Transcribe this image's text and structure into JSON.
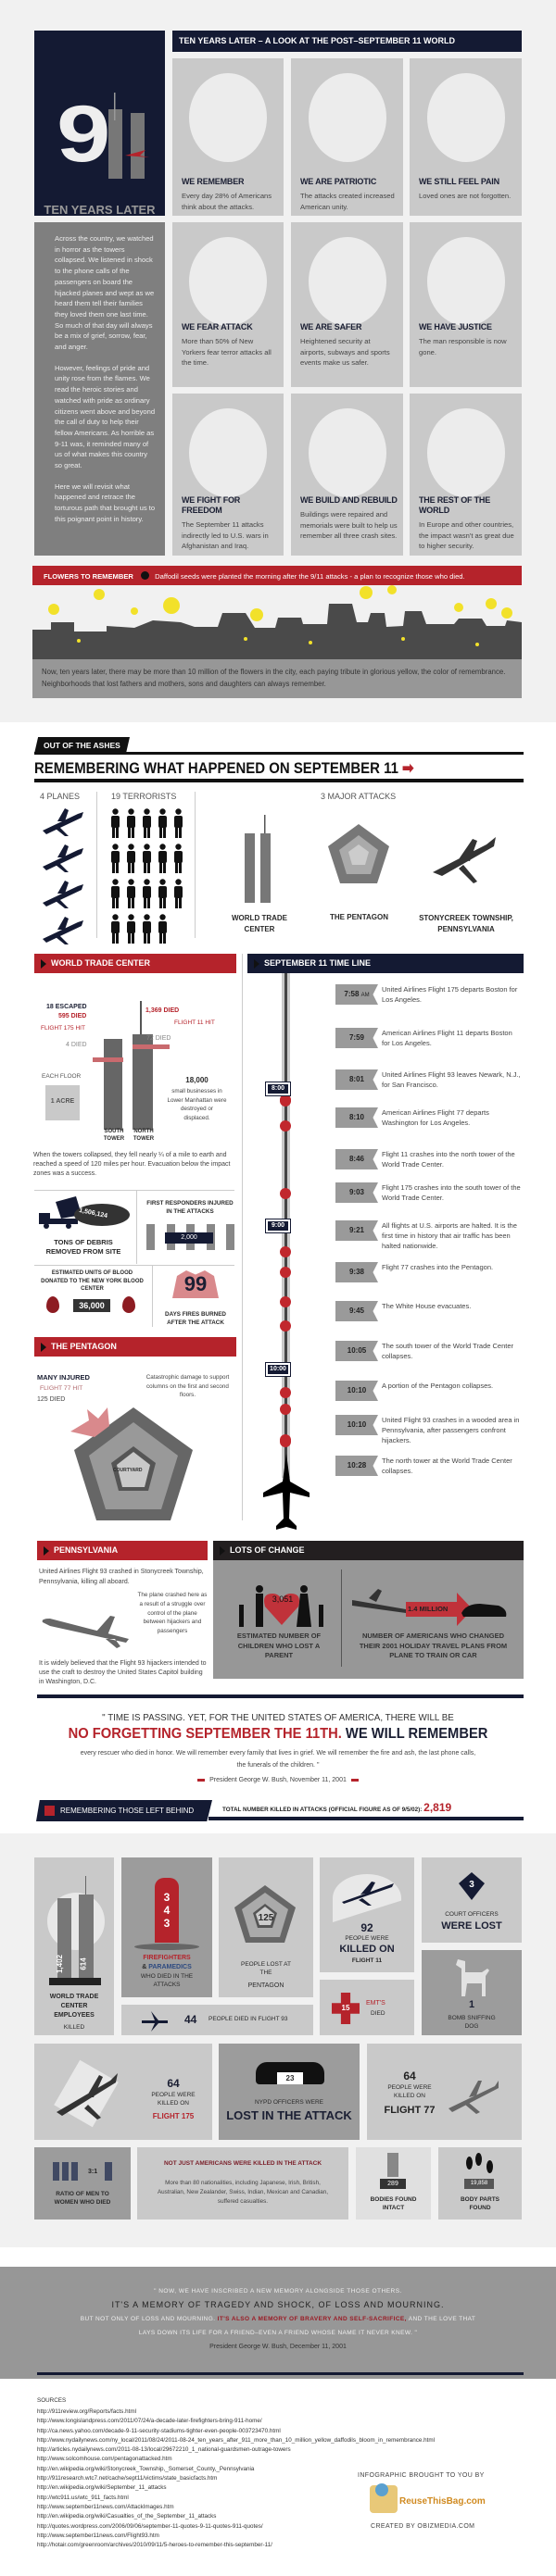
{
  "intro": {
    "logo_number": "9 11",
    "subtitle": "TEN YEARS LATER",
    "header": "TEN YEARS LATER – A LOOK AT THE POST–SEPTEMBER 11 WORLD",
    "story": [
      "Across the country, we watched in horror as the towers collapsed. We listened in shock to the phone calls of the passengers on board the hijacked planes and wept as we heard them tell their families they loved them one last time. So much of that day will always be a mix of grief, sorrow, fear, and anger.",
      "However, feelings of pride and unity rose from the flames. We read the heroic stories and watched with pride as ordinary citizens went above and beyond the call of duty to help their fellow Americans. As horrible as 9-11 was, it reminded many of us of what makes this country so great.",
      "Here we will revisit what happened and retrace the torturous path that brought us to this poignant point in history."
    ],
    "cards": [
      {
        "title": "WE REMEMBER",
        "text": "Every day 28% of Americans think about the attacks.",
        "icon": "thinking-person-icon"
      },
      {
        "title": "WE ARE PATRIOTIC",
        "text": "The attacks created increased American unity.",
        "icon": "flag-icon"
      },
      {
        "title": "WE STILL FEEL PAIN",
        "text": "Loved ones are not forgotten.",
        "icon": "heart-graves-icon"
      },
      {
        "title": "WE FEAR ATTACK",
        "text": "More than 50% of New Yorkers fear terror attacks all the time.",
        "icon": "plane-city-icon"
      },
      {
        "title": "WE ARE SAFER",
        "text": "Heightened security at airports, subways and sports events make us safer.",
        "icon": "security-gate-icon"
      },
      {
        "title": "WE HAVE JUSTICE",
        "text": "The man responsible is now gone.",
        "icon": "justice-portrait-icon",
        "stamp": "JUSTICE"
      },
      {
        "title": "WE FIGHT FOR FREEDOM",
        "text": "The September 11 attacks indirectly led to U.S. wars in Afghanistan and Iraq.",
        "icon": "tank-jet-icon"
      },
      {
        "title": "WE BUILD AND REBUILD",
        "text": "Buildings were repaired and memorials were built to help us remember all three crash sites.",
        "icon": "tools-icon"
      },
      {
        "title": "THE REST OF THE WORLD",
        "text": "In Europe and other countries, the impact wasn't as great due to higher security.",
        "icon": "globe-icon"
      }
    ]
  },
  "flowers": {
    "label": "FLOWERS TO REMEMBER",
    "caption": "Daffodil seeds were planted the morning after the 9/11 attacks - a plan to recognize those who died.",
    "text": "Now, ten years later, there may be more than 10 million of the flowers in the city, each paying tribute in glorious yellow, the color of remembrance. Neighborhoods that lost fathers and mothers, sons and daughters can always remember."
  },
  "ashes": {
    "tag": "OUT OF THE ASHES",
    "title": "REMEMBERING WHAT HAPPENED ON SEPTEMBER 11",
    "planes_label": "4 PLANES",
    "planes_count": 4,
    "terrorists_label": "19 TERRORISTS",
    "terrorists_count": 19,
    "attacks_label": "3 MAJOR ATTACKS",
    "attacks": [
      "WORLD TRADE CENTER",
      "THE PENTAGON",
      "STONYCREEK TOWNSHIP, PENNSYLVANIA"
    ]
  },
  "wtc": {
    "header": "WORLD TRADE CENTER",
    "south": {
      "escaped": "18 ESCAPED",
      "died_above": "595 DIED",
      "hit": "FLIGHT 175 HIT",
      "died_below": "4 DIED",
      "label": "SOUTH TOWER"
    },
    "north": {
      "died_above": "1,369 DIED",
      "hit": "FLIGHT 11 HIT",
      "died_below": "72 DIED",
      "label": "NORTH TOWER"
    },
    "floor_label": "EACH FLOOR",
    "floor_value": "1 ACRE",
    "businesses_value": "18,000",
    "businesses_text": "small businesses in Lower Manhattan were destroyed or displaced.",
    "collapse_text": "When the towers collapsed, they fell nearly ¼ of a mile to earth and reached a speed of 120 miles per hour. Evacuation below the impact zones was a success.",
    "debris_value": "1,506,124",
    "debris_label": "TONS OF DEBRIS REMOVED FROM SITE",
    "responders_label": "FIRST RESPONDERS INJURED IN THE ATTACKS",
    "responders_value": "2,000",
    "blood_label": "ESTIMATED UNITS OF BLOOD DONATED TO THE NEW YORK BLOOD CENTER",
    "blood_value": "36,000",
    "fires_value": "99",
    "fires_label": "DAYS FIRES BURNED AFTER THE ATTACK"
  },
  "pentagon": {
    "header": "THE PENTAGON",
    "injured": "MANY INJURED",
    "hit": "FLIGHT 77 HIT",
    "died": "125 DIED",
    "damage": "Catastrophic damage to support columns on the first and second floors.",
    "courtyard": "COURTYARD"
  },
  "timeline": {
    "header": "SEPTEMBER 11  TIME LINE",
    "hours": [
      "8:00",
      "9:00",
      "10:00"
    ],
    "events": [
      {
        "time": "7:58",
        "suffix": "AM",
        "text": "United Airlines Flight 175 departs Boston for Los Angeles."
      },
      {
        "time": "7:59",
        "text": "American Airlines Flight 11 departs Boston for Los Angeles."
      },
      {
        "time": "8:01",
        "text": "United Airlines Flight 93 leaves Newark, N.J., for San Francisco."
      },
      {
        "time": "8:10",
        "text": "American Airlines Flight 77 departs Washington for Los Angeles."
      },
      {
        "time": "8:46",
        "text": "Flight 11 crashes into the north tower of the World Trade Center."
      },
      {
        "time": "9:03",
        "text": "Flight 175 crashes into the south tower of the World Trade Center."
      },
      {
        "time": "9:21",
        "text": "All flights at U.S. airports are halted.  It is the first time in history that air traffic has been halted nationwide."
      },
      {
        "time": "9:38",
        "text": "Flight 77 crashes into the Pentagon."
      },
      {
        "time": "9:45",
        "text": "The White House evacuates."
      },
      {
        "time": "10:05",
        "text": "The south tower of the World Trade Center collapses."
      },
      {
        "time": "10:10",
        "text": "A portion of the Pentagon collapses."
      },
      {
        "time": "10:10",
        "text": "United Flight 93 crashes in a wooded area in Pennsylvania, after passengers confront hijackers."
      },
      {
        "time": "10:28",
        "text": "The north tower at the World Trade Center collapses."
      }
    ]
  },
  "pennsylvania": {
    "header": "PENNSYLVANIA",
    "text1": "United Airlines Flight 93 crashed in Stonycreek Township, Pennsylvania, killing all aboard.",
    "text2": "The plane crashed here as a result of a struggle over control of the plane between hijackers and passengers",
    "text3": "It is widely believed that the Flight 93 hijackers intended to use the craft to destroy the United States Capitol building in Washington, D.C."
  },
  "change": {
    "header": "LOTS OF CHANGE",
    "children_value": "3,051",
    "children_label": "ESTIMATED NUMBER OF CHILDREN WHO LOST A PARENT",
    "travel_value": "1.4 MILLION",
    "travel_label": "NUMBER OF AMERICANS WHO CHANGED THEIR 2001 HOLIDAY TRAVEL PLANS FROM PLANE TO TRAIN OR CAR"
  },
  "quote1": {
    "line1": "\" TIME IS PASSING. YET, FOR THE UNITED STATES OF AMERICA, THERE WILL BE",
    "red": "NO FORGETTING SEPTEMBER THE 11TH.",
    "navy": " WE WILL REMEMBER",
    "line3": "every rescuer who died in honor. We will remember every family that lives in grief. We will remember the fire and ash, the last phone calls, the funerals of the children. \"",
    "attribution": "President George W. Bush, November 11, 2001"
  },
  "left_behind": {
    "header": "REMEMBERING THOSE LEFT BEHIND",
    "total_label": "TOTAL NUMBER KILLED IN ATTACKS (OFFICIAL FIGURE AS OF 9/5/02):",
    "total_value": "2,819",
    "wtc_south": "1,402",
    "wtc_north": "614",
    "wtc_label": "WORLD TRADE CENTER EMPLOYEES",
    "wtc_label2": "KILLED",
    "fire_value": "343",
    "fire_l1": "FIREFIGHTERS",
    "fire_l2": "& ",
    "fire_l3": "PARAMEDICS",
    "fire_l4": "WHO DIED IN THE ATTACKS",
    "pent_value": "125",
    "pent_label": "PEOPLE LOST AT THE",
    "pent_label2": "PENTAGON",
    "f11_value": "92",
    "f11_l1": "PEOPLE WERE",
    "f11_l2": "KILLED ON",
    "f11_l3": "FLIGHT 11",
    "court_value": "3",
    "court_l1": "COURT OFFICERS",
    "court_l2": "WERE LOST",
    "f93_value": "44",
    "f93_label": "PEOPLE DIED IN FLIGHT 93",
    "emt_value": "15",
    "emt_l1": "EMT'S",
    "emt_l2": "DIED",
    "dog_value": "1",
    "dog_label": "BOMB SNIFFING DOG",
    "f175_value": "64",
    "f175_l1": "PEOPLE WERE KILLED ON",
    "f175_l2": "FLIGHT 175",
    "nypd_value": "23",
    "nypd_l1": "NYPD OFFICERS WERE",
    "nypd_l2": "LOST IN THE ATTACK",
    "f77_value": "64",
    "f77_l1": "PEOPLE WERE KILLED ON",
    "f77_l2": "FLIGHT 77",
    "ratio_value": "3:1",
    "ratio_label": "RATIO OF MEN TO WOMEN WHO DIED",
    "nat_title": "NOT JUST AMERICANS WERE KILLED IN THE ATTACK",
    "nat_text": "More than 80 nationalities, including Japanese, Irish, British, Australian, New Zealander, Swiss, Indian, Mexican and Canadian, suffered casualties.",
    "bodies_value": "289",
    "bodies_label": "BODIES FOUND INTACT",
    "parts_value": "19,858",
    "parts_label": "BODY PARTS FOUND"
  },
  "quote2": {
    "l1": "\" NOW, WE HAVE INSCRIBED A NEW MEMORY ALONGSIDE THOSE OTHERS.",
    "l2": "IT'S A MEMORY OF TRAGEDY AND SHOCK, OF LOSS AND MOURNING.",
    "l3a": "BUT NOT ONLY OF LOSS AND MOURNING. ",
    "l3b": "IT'S ALSO A MEMORY OF BRAVERY AND SELF-SACRIFICE,",
    "l3c": " AND THE LOVE THAT",
    "l4": "LAYS DOWN ITS LIFE FOR A FRIEND–EVEN A FRIEND WHOSE NAME IT NEVER KNEW. \"",
    "attribution": "President George W. Bush, December 11, 2001"
  },
  "sources": {
    "title": "SOURCES",
    "links": [
      "http://911review.org/Reports/facts.html",
      "http://www.longislandpress.com/2011/07/24/a-decade-later-firefighters-bring-911-home/",
      "http://ca.news.yahoo.com/decade-9-11-security-stadiums-tighter-even-people-003723470.html",
      "http://www.nydailynews.com/ny_local/2011/08/24/2011-08-24_ten_years_after_911_more_than_10_million_yellow_daffodils_bloom_in_remembrance.html",
      "http://articles.nydailynews.com/2011-08-13/local/29672210_1_national-guardsmen-outrage-towers",
      "http://www.solcomhouse.com/pentagonattacked.htm",
      "http://en.wikipedia.org/wiki/Stonycreek_Township,_Somerset_County,_Pennsylvania",
      "http://911research.wtc7.net/cache/sept11/victims/state_basicfacts.htm",
      "http://en.wikipedia.org/wiki/September_11_attacks",
      "http://wtc911.us/wtc_911_facts.html",
      "http://www.september11news.com/AttackImages.htm",
      "http://en.wikipedia.org/wiki/Casualties_of_the_September_11_attacks",
      "http://quotes.wordpress.com/2006/09/06/september-11-quotes-9-11-quotes-911-quotes/",
      "http://www.september11news.com/Flight93.htm",
      "http://hotair.com/greenroom/archives/2010/09/11/5-heroes-to-remember-this-september-11/"
    ]
  },
  "credits": {
    "brought": "INFOGRAPHIC BROUGHT TO YOU BY",
    "logo_text": "ReuseThisBag.com",
    "created": "CREATED BY OBIZMEDIA.COM"
  },
  "colors": {
    "navy": "#141a33",
    "red": "#b5232b",
    "grey": "#c9c9c9",
    "daffodil": "#f2e12a"
  }
}
